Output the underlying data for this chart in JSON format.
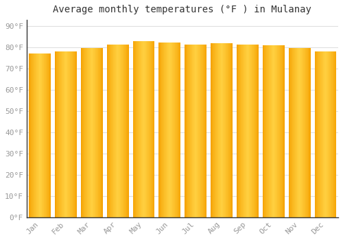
{
  "months": [
    "Jan",
    "Feb",
    "Mar",
    "Apr",
    "May",
    "Jun",
    "Jul",
    "Aug",
    "Sep",
    "Oct",
    "Nov",
    "Dec"
  ],
  "values": [
    77.2,
    78.0,
    79.7,
    81.3,
    83.0,
    82.2,
    81.3,
    82.0,
    81.3,
    81.0,
    79.9,
    78.3
  ],
  "bar_color_dark": "#F5A000",
  "bar_color_light": "#FFD040",
  "background_color": "#FFFFFF",
  "grid_color": "#E0E0E0",
  "title": "Average monthly temperatures (°F ) in Mulanay",
  "title_fontsize": 10,
  "ylabel_ticks": [
    0,
    10,
    20,
    30,
    40,
    50,
    60,
    70,
    80,
    90
  ],
  "ylim": [
    0,
    93
  ],
  "tick_label_color": "#999999",
  "font_family": "monospace"
}
